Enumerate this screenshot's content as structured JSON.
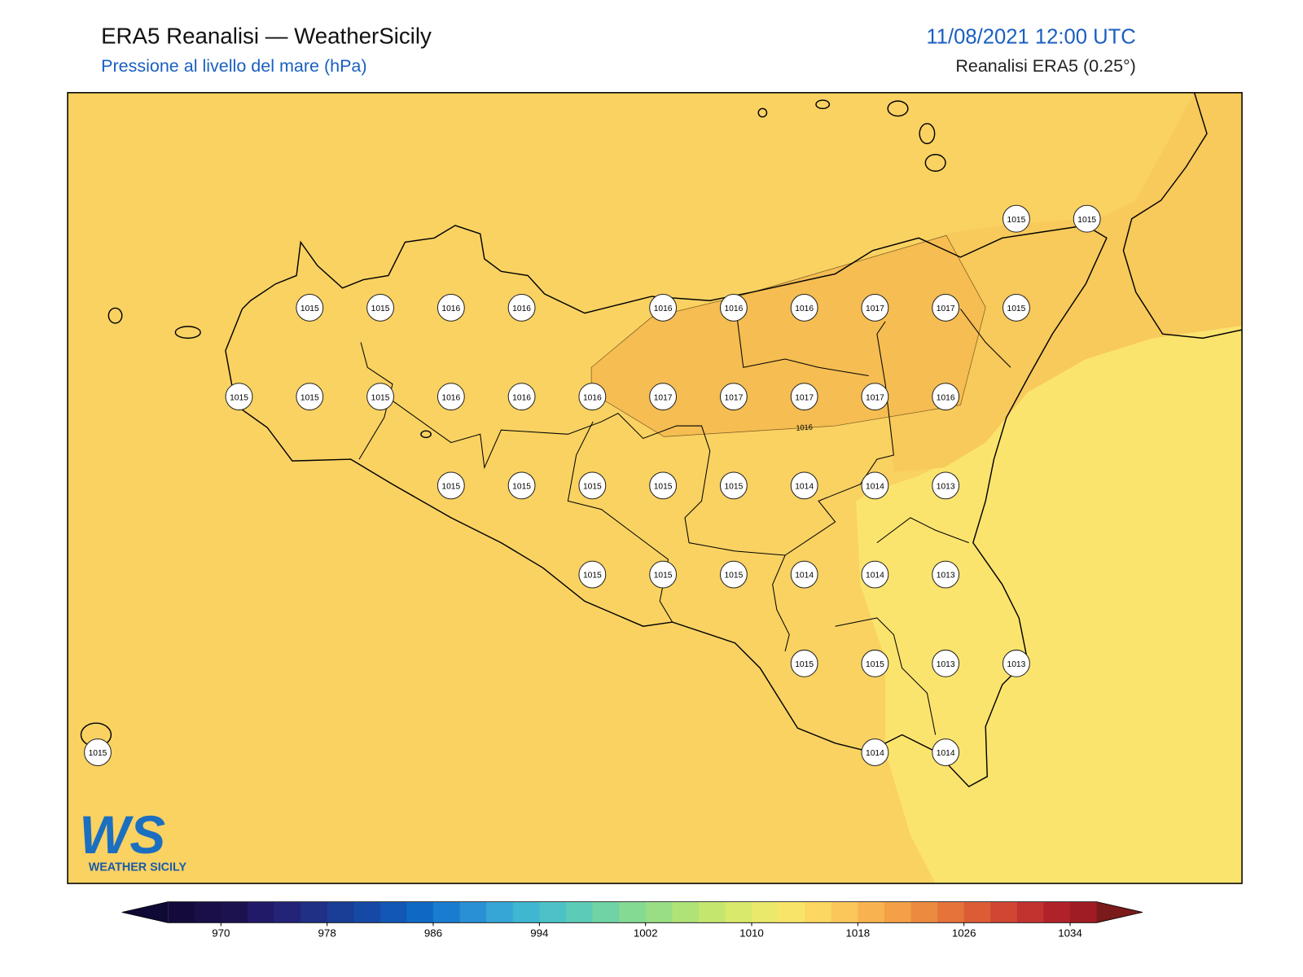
{
  "header": {
    "title": "ERA5 Reanalisi — WeatherSicily",
    "subtitle": "Pressione al livello del mare (hPa)",
    "datetime": "11/08/2021 12:00 UTC",
    "source": "Reanalisi ERA5 (0.25°)"
  },
  "map": {
    "contour_label": "1016",
    "stations": {
      "rows": [
        [
          null,
          null,
          null,
          null,
          null,
          null,
          null,
          null,
          null,
          null,
          null,
          null,
          null,
          1015,
          1015
        ],
        [
          null,
          null,
          null,
          1015,
          1015,
          1016,
          1016,
          null,
          1016,
          1016,
          1016,
          1017,
          1017,
          1015,
          null
        ],
        [
          null,
          null,
          1015,
          1015,
          1015,
          1016,
          1016,
          1016,
          1017,
          1017,
          1017,
          1017,
          1016,
          null,
          null
        ],
        [
          null,
          null,
          null,
          null,
          null,
          1015,
          1015,
          1015,
          1015,
          1015,
          1014,
          1014,
          1013,
          null,
          null
        ],
        [
          null,
          null,
          null,
          null,
          null,
          null,
          null,
          1015,
          1015,
          1015,
          1014,
          1014,
          1013,
          null,
          null
        ],
        [
          null,
          null,
          null,
          null,
          null,
          null,
          null,
          null,
          null,
          null,
          1015,
          1015,
          1013,
          1013,
          null
        ],
        [
          1015,
          null,
          null,
          null,
          null,
          null,
          null,
          null,
          null,
          null,
          null,
          1014,
          1014,
          null,
          null
        ]
      ]
    }
  },
  "colorbar": {
    "lim": [
      966,
      1036
    ],
    "ticks": [
      970,
      978,
      986,
      994,
      1002,
      1010,
      1018,
      1026,
      1034
    ],
    "colors": [
      "#140b3c",
      "#1a0f48",
      "#1d1250",
      "#211a68",
      "#232477",
      "#1f3085",
      "#1a3d95",
      "#1649a5",
      "#1257b5",
      "#0f69c4",
      "#1a7ccf",
      "#2a90d5",
      "#35a6d6",
      "#3fb7d1",
      "#4cc2c6",
      "#5ccbb7",
      "#6fd3a5",
      "#84d993",
      "#99de84",
      "#afe277",
      "#c4e66f",
      "#d8e96c",
      "#ebe96c",
      "#f9e46a",
      "#fcd761",
      "#fbc65a",
      "#f8b350",
      "#f3a047",
      "#ec8a3f",
      "#e5733a",
      "#dc5c36",
      "#d04633",
      "#c2322f",
      "#b0222a",
      "#a01c24"
    ],
    "under": "#0f0a35",
    "over": "#7a1a1a"
  },
  "logo": {
    "mark": "WS",
    "name": "WEATHER SICILY"
  }
}
